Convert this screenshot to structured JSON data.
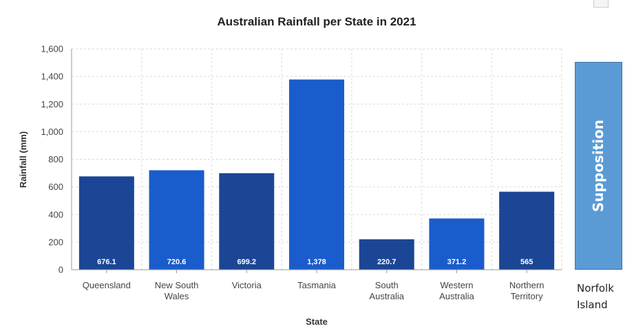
{
  "chart_data": {
    "type": "bar",
    "title": "Australian Rainfall per State in 2021",
    "xlabel": "State",
    "ylabel": "Rainfall (mm)",
    "ylim": [
      0,
      1600
    ],
    "yticks": [
      0,
      200,
      400,
      600,
      800,
      1000,
      1200,
      1400,
      1600
    ],
    "ytick_labels": [
      "0",
      "200",
      "400",
      "600",
      "800",
      "1,000",
      "1,200",
      "1,400",
      "1,600"
    ],
    "grid": true,
    "categories": [
      [
        "Queensland"
      ],
      [
        "New South",
        "Wales"
      ],
      [
        "Victoria"
      ],
      [
        "Tasmania"
      ],
      [
        "South",
        "Australia"
      ],
      [
        "Western",
        "Australia"
      ],
      [
        "Northern",
        "Territory"
      ]
    ],
    "values": [
      676.1,
      720.6,
      699.2,
      1378,
      220.7,
      371.2,
      565
    ],
    "data_labels": [
      "676.1",
      "720.6",
      "699.2",
      "1,378",
      "220.7",
      "371.2",
      "565"
    ],
    "colors": [
      "#1b4695",
      "#1a5ccc",
      "#1b4695",
      "#1a5ccc",
      "#1b4695",
      "#1a5ccc",
      "#1b4695"
    ]
  },
  "side_box": {
    "label": "Supposition",
    "fill": "#5b9bd5"
  },
  "side_caption": {
    "line1": "Norfolk",
    "line2": "Island"
  }
}
